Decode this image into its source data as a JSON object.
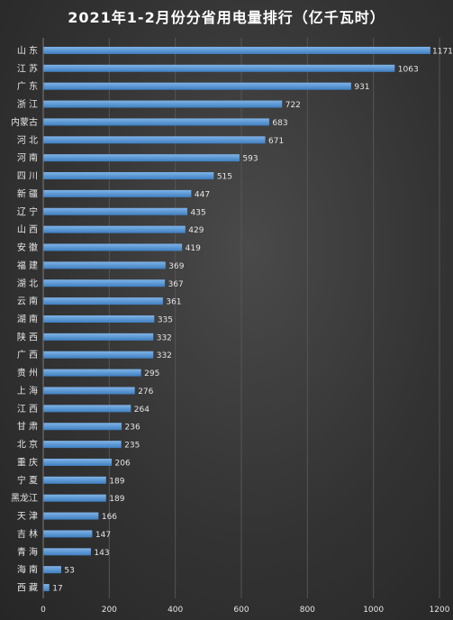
{
  "chart_data": {
    "type": "bar",
    "orientation": "horizontal",
    "title": "2021年1-2月份分省用电量排行（亿千瓦时）",
    "categories": [
      "山东",
      "江苏",
      "广东",
      "浙江",
      "内蒙古",
      "河北",
      "河南",
      "四川",
      "新疆",
      "辽宁",
      "山西",
      "安徽",
      "福建",
      "湖北",
      "云南",
      "湖南",
      "陕西",
      "广西",
      "贵州",
      "上海",
      "江西",
      "甘肃",
      "北京",
      "重庆",
      "宁夏",
      "黑龙江",
      "天津",
      "吉林",
      "青海",
      "海南",
      "西藏"
    ],
    "category_display": [
      "山 东",
      "江 苏",
      "广 东",
      "浙 江",
      "内蒙古",
      "河 北",
      "河 南",
      "四 川",
      "新 疆",
      "辽 宁",
      "山 西",
      "安 徽",
      "福 建",
      "湖 北",
      "云 南",
      "湖 南",
      "陕 西",
      "广 西",
      "贵 州",
      "上 海",
      "江 西",
      "甘 肃",
      "北 京",
      "重 庆",
      "宁 夏",
      "黑龙江",
      "天 津",
      "吉 林",
      "青 海",
      "海 南",
      "西 藏"
    ],
    "values": [
      1171,
      1063,
      931,
      722,
      683,
      671,
      593,
      515,
      447,
      435,
      429,
      419,
      369,
      367,
      361,
      335,
      332,
      332,
      295,
      276,
      264,
      236,
      235,
      206,
      189,
      189,
      166,
      147,
      143,
      53,
      17
    ],
    "xlim": [
      0,
      1200
    ],
    "xticks": [
      0,
      200,
      400,
      600,
      800,
      1000,
      1200
    ],
    "grid": true,
    "legend": "none",
    "colors": {
      "bar_top": "#7fb3e8",
      "bar_bottom": "#3f7fc0",
      "grid": "#555555",
      "text": "#e6e6e6"
    }
  }
}
